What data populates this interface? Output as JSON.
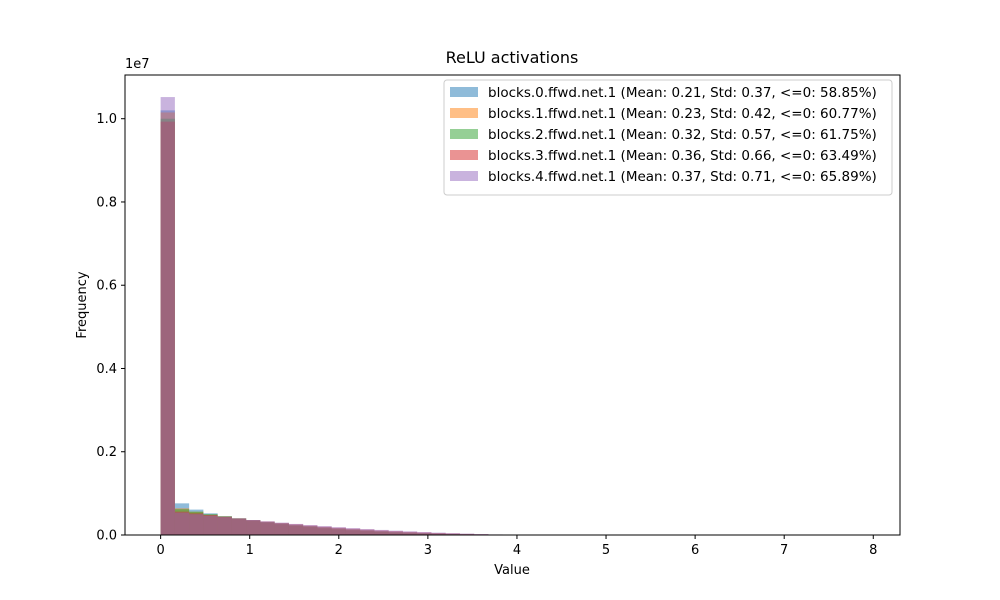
{
  "chart_data": {
    "type": "bar",
    "title": "ReLU activations",
    "xlabel": "Value",
    "ylabel": "Frequency",
    "y_offset_label": "1e7",
    "xlim": [
      -0.4,
      8.3
    ],
    "ylim": [
      0,
      11050000
    ],
    "x_ticks": [
      0,
      1,
      2,
      3,
      4,
      5,
      6,
      7,
      8
    ],
    "y_ticks": [
      0,
      2000000,
      4000000,
      6000000,
      8000000,
      10000000
    ],
    "y_tick_labels": [
      "0.0",
      "0.2",
      "0.4",
      "0.6",
      "0.8",
      "1.0"
    ],
    "bin_width": 0.16,
    "legend_position": "top-right",
    "series": [
      {
        "name": "blocks.0.ffwd.net.1 (Mean: 0.21, Std: 0.37, <=0: 58.85%)",
        "color": "#1f77b4",
        "bins": [
          [
            0,
            10200000
          ],
          [
            0.16,
            760000
          ],
          [
            0.32,
            610000
          ],
          [
            0.48,
            520000
          ],
          [
            0.64,
            450000
          ],
          [
            0.8,
            400000
          ],
          [
            0.96,
            350000
          ],
          [
            1.12,
            300000
          ],
          [
            1.28,
            260000
          ],
          [
            1.44,
            220000
          ],
          [
            1.6,
            190000
          ],
          [
            1.76,
            160000
          ],
          [
            1.92,
            130000
          ],
          [
            2.08,
            110000
          ],
          [
            2.24,
            90000
          ],
          [
            2.4,
            70000
          ],
          [
            2.56,
            55000
          ],
          [
            2.72,
            40000
          ],
          [
            2.88,
            30000
          ],
          [
            3.04,
            20000
          ],
          [
            3.2,
            14000
          ],
          [
            3.36,
            9000
          ],
          [
            3.52,
            5000
          ],
          [
            3.68,
            2000
          ]
        ]
      },
      {
        "name": "blocks.1.ffwd.net.1 (Mean: 0.23, Std: 0.42, <=0: 60.77%)",
        "color": "#ff7f0e",
        "bins": [
          [
            0,
            10150000
          ],
          [
            0.16,
            640000
          ],
          [
            0.32,
            560000
          ],
          [
            0.48,
            490000
          ],
          [
            0.64,
            440000
          ],
          [
            0.8,
            390000
          ],
          [
            0.96,
            340000
          ],
          [
            1.12,
            300000
          ],
          [
            1.28,
            260000
          ],
          [
            1.44,
            225000
          ],
          [
            1.6,
            195000
          ],
          [
            1.76,
            165000
          ],
          [
            1.92,
            140000
          ],
          [
            2.08,
            115000
          ],
          [
            2.24,
            95000
          ],
          [
            2.4,
            75000
          ],
          [
            2.56,
            58000
          ],
          [
            2.72,
            44000
          ],
          [
            2.88,
            32000
          ],
          [
            3.04,
            22000
          ],
          [
            3.2,
            15000
          ],
          [
            3.36,
            10000
          ]
        ]
      },
      {
        "name": "blocks.2.ffwd.net.1 (Mean: 0.32, Std: 0.57, <=0: 61.75%)",
        "color": "#2ca02c",
        "bins": [
          [
            0,
            10000000
          ],
          [
            0.16,
            620000
          ],
          [
            0.32,
            560000
          ],
          [
            0.48,
            500000
          ],
          [
            0.64,
            450000
          ],
          [
            0.8,
            400000
          ],
          [
            0.96,
            355000
          ],
          [
            1.12,
            315000
          ],
          [
            1.28,
            280000
          ],
          [
            1.44,
            245000
          ],
          [
            1.6,
            215000
          ],
          [
            1.76,
            185000
          ],
          [
            1.92,
            160000
          ],
          [
            2.08,
            135000
          ],
          [
            2.24,
            115000
          ],
          [
            2.4,
            95000
          ],
          [
            2.56,
            78000
          ],
          [
            2.72,
            62000
          ],
          [
            2.88,
            48000
          ],
          [
            3.04,
            36000
          ],
          [
            3.2,
            26000
          ],
          [
            3.36,
            18000
          ],
          [
            3.52,
            12000
          ],
          [
            3.68,
            7000
          ]
        ]
      },
      {
        "name": "blocks.3.ffwd.net.1 (Mean: 0.36, Std: 0.66, <=0: 63.49%)",
        "color": "#d62728",
        "bins": [
          [
            0,
            9930000
          ],
          [
            0.16,
            560000
          ],
          [
            0.32,
            520000
          ],
          [
            0.48,
            480000
          ],
          [
            0.64,
            440000
          ],
          [
            0.8,
            400000
          ],
          [
            0.96,
            360000
          ],
          [
            1.12,
            325000
          ],
          [
            1.28,
            290000
          ],
          [
            1.44,
            258000
          ],
          [
            1.6,
            228000
          ],
          [
            1.76,
            200000
          ],
          [
            1.92,
            175000
          ],
          [
            2.08,
            152000
          ],
          [
            2.24,
            130000
          ],
          [
            2.4,
            110000
          ],
          [
            2.56,
            92000
          ],
          [
            2.72,
            76000
          ],
          [
            2.88,
            61000
          ],
          [
            3.04,
            48000
          ],
          [
            3.2,
            37000
          ],
          [
            3.36,
            27000
          ],
          [
            3.52,
            18000
          ],
          [
            3.68,
            10000
          ]
        ]
      },
      {
        "name": "blocks.4.ffwd.net.1 (Mean: 0.37, Std: 0.71, <=0: 65.89%)",
        "color": "#9467bd",
        "bins": [
          [
            0,
            10520000
          ],
          [
            0.16,
            540000
          ],
          [
            0.32,
            500000
          ],
          [
            0.48,
            465000
          ],
          [
            0.64,
            430000
          ],
          [
            0.8,
            395000
          ],
          [
            0.96,
            360000
          ],
          [
            1.12,
            328000
          ],
          [
            1.28,
            296000
          ],
          [
            1.44,
            266000
          ],
          [
            1.6,
            238000
          ],
          [
            1.76,
            212000
          ],
          [
            1.92,
            187000
          ],
          [
            2.08,
            164000
          ],
          [
            2.24,
            142000
          ],
          [
            2.4,
            122000
          ],
          [
            2.56,
            104000
          ],
          [
            2.72,
            87000
          ],
          [
            2.88,
            71000
          ],
          [
            3.04,
            57000
          ],
          [
            3.2,
            44000
          ],
          [
            3.36,
            33000
          ],
          [
            3.52,
            23000
          ],
          [
            3.68,
            14000
          ]
        ]
      }
    ]
  }
}
